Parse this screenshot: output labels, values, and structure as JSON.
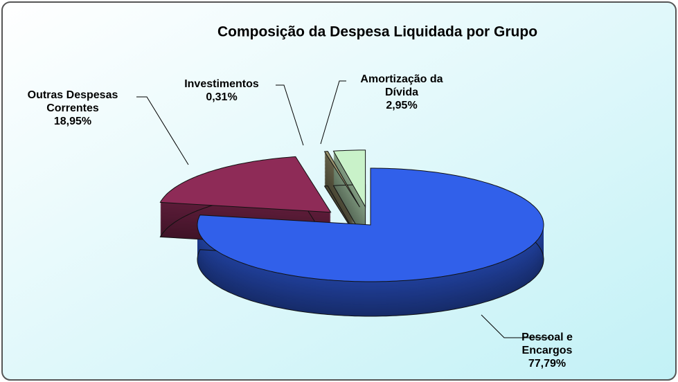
{
  "chart_data": {
    "type": "pie",
    "title": "Composição da Despesa Liquidada por Grupo",
    "categories": [
      "Pessoal e Encargos",
      "Outras Despesas Correntes",
      "Investimentos",
      "Amortização da Dívida"
    ],
    "values": [
      77.79,
      18.95,
      0.31,
      2.95
    ],
    "value_labels": [
      "77,79%",
      "18,95%",
      "0,31%",
      "2,95%"
    ],
    "colors": [
      "#3160ea",
      "#8e2b57",
      "#9a946e",
      "#c9f2c9"
    ]
  }
}
